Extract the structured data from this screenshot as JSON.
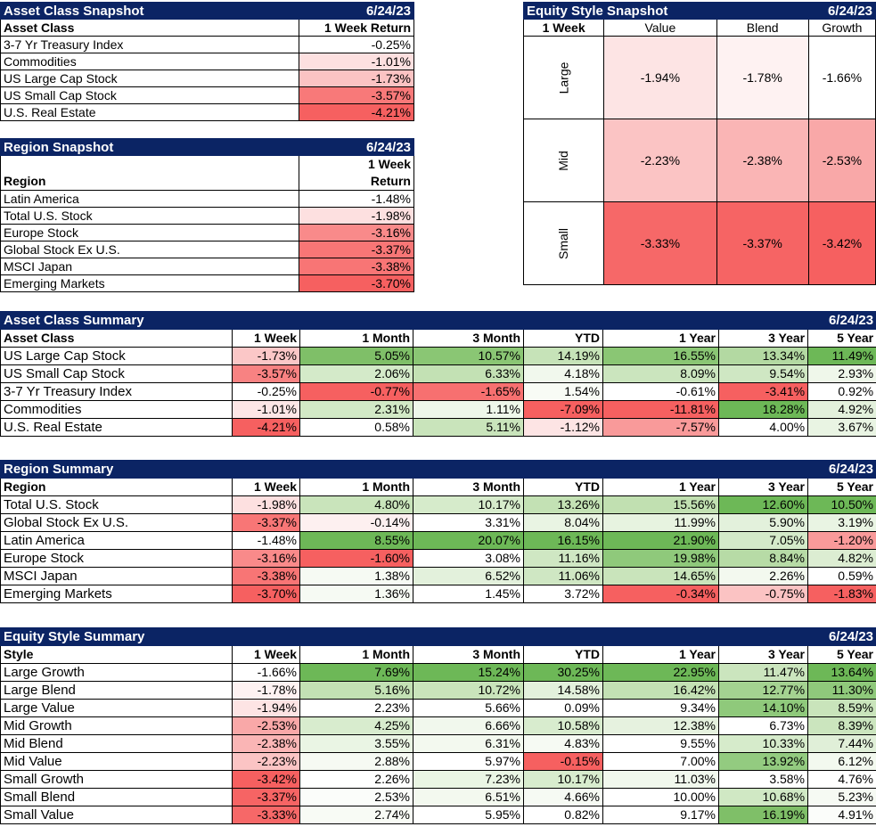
{
  "asset_snapshot": {
    "title": "Asset Class Snapshot",
    "date": "6/24/23",
    "col1": "Asset Class",
    "col2": "1 Week Return",
    "rows": [
      {
        "name": "3-7 Yr Treasury Index",
        "value": "-0.25%",
        "color": "#ffffff"
      },
      {
        "name": "Commodities",
        "value": "-1.01%",
        "color": "#fde0e0"
      },
      {
        "name": "US Large Cap Stock",
        "value": "-1.73%",
        "color": "#fbc3c3"
      },
      {
        "name": "US Small Cap Stock",
        "value": "-3.57%",
        "color": "#f87979"
      },
      {
        "name": "U.S. Real Estate",
        "value": "-4.21%",
        "color": "#f66060"
      }
    ]
  },
  "region_snapshot": {
    "title": "Region Snapshot",
    "date": "6/24/23",
    "col1": "Region",
    "col2_line1": "1 Week",
    "col2_line2": "Return",
    "rows": [
      {
        "name": "Latin America",
        "value": "-1.48%",
        "color": "#ffffff"
      },
      {
        "name": "Total U.S. Stock",
        "value": "-1.98%",
        "color": "#fde0e0"
      },
      {
        "name": "Europe Stock",
        "value": "-3.16%",
        "color": "#f98a8a"
      },
      {
        "name": "Global Stock Ex U.S.",
        "value": "-3.37%",
        "color": "#f87676"
      },
      {
        "name": "MSCI Japan",
        "value": "-3.38%",
        "color": "#f87575"
      },
      {
        "name": "Emerging Markets",
        "value": "-3.70%",
        "color": "#f66060"
      }
    ]
  },
  "equity_snapshot": {
    "title": "Equity Style Snapshot",
    "date": "6/24/23",
    "corner": "1 Week",
    "cols": [
      "Value",
      "Blend",
      "Growth"
    ],
    "rows": [
      {
        "label": "Large",
        "cells": [
          {
            "value": "-1.94%",
            "color": "#fde4e4"
          },
          {
            "value": "-1.78%",
            "color": "#fef2f2"
          },
          {
            "value": "-1.66%",
            "color": "#ffffff"
          }
        ]
      },
      {
        "label": "Mid",
        "cells": [
          {
            "value": "-2.23%",
            "color": "#fbc4c4"
          },
          {
            "value": "-2.38%",
            "color": "#fab5b5"
          },
          {
            "value": "-2.53%",
            "color": "#f9a8a8"
          }
        ]
      },
      {
        "label": "Small",
        "cells": [
          {
            "value": "-3.33%",
            "color": "#f66868"
          },
          {
            "value": "-3.37%",
            "color": "#f66464"
          },
          {
            "value": "-3.42%",
            "color": "#f66060"
          }
        ]
      }
    ]
  },
  "asset_summary": {
    "title": "Asset Class Summary",
    "date": "6/24/23",
    "headers": [
      "Asset Class",
      "1 Week",
      "1 Month",
      "3 Month",
      "YTD",
      "1 Year",
      "3 Year",
      "5 Year"
    ],
    "rows": [
      {
        "name": "US Large Cap Stock",
        "cells": [
          {
            "v": "-1.73%",
            "c": "#fbc7c7"
          },
          {
            "v": "5.05%",
            "c": "#7fbf68"
          },
          {
            "v": "10.57%",
            "c": "#8ac674"
          },
          {
            "v": "14.19%",
            "c": "#c6e3b8"
          },
          {
            "v": "16.55%",
            "c": "#8ac674"
          },
          {
            "v": "13.34%",
            "c": "#b3d9a2"
          },
          {
            "v": "11.49%",
            "c": "#6db857"
          }
        ]
      },
      {
        "name": "US Small Cap Stock",
        "cells": [
          {
            "v": "-3.57%",
            "c": "#f88282"
          },
          {
            "v": "2.06%",
            "c": "#d4eac9"
          },
          {
            "v": "6.33%",
            "c": "#c3e1b4"
          },
          {
            "v": "4.18%",
            "c": "#f1f8ed"
          },
          {
            "v": "8.09%",
            "c": "#cbe5be"
          },
          {
            "v": "9.54%",
            "c": "#cfe7c3"
          },
          {
            "v": "2.93%",
            "c": "#eff7ea"
          }
        ]
      },
      {
        "name": "3-7 Yr Treasury Index",
        "cells": [
          {
            "v": "-0.25%",
            "c": "#ffffff"
          },
          {
            "v": "-0.77%",
            "c": "#f66060"
          },
          {
            "v": "-1.65%",
            "c": "#f77070"
          },
          {
            "v": "1.54%",
            "c": "#f8fbf5"
          },
          {
            "v": "-0.61%",
            "c": "#ffffff"
          },
          {
            "v": "-3.41%",
            "c": "#f66060"
          },
          {
            "v": "0.92%",
            "c": "#ffffff"
          }
        ]
      },
      {
        "name": "Commodities",
        "cells": [
          {
            "v": "-1.01%",
            "c": "#fde6e6"
          },
          {
            "v": "2.31%",
            "c": "#d2e9c6"
          },
          {
            "v": "1.11%",
            "c": "#eef7ea"
          },
          {
            "v": "-7.09%",
            "c": "#f66060"
          },
          {
            "v": "-11.81%",
            "c": "#f66060"
          },
          {
            "v": "18.28%",
            "c": "#6db857"
          },
          {
            "v": "4.92%",
            "c": "#e3f1dc"
          }
        ]
      },
      {
        "name": "U.S. Real Estate",
        "cells": [
          {
            "v": "-4.21%",
            "c": "#f66060"
          },
          {
            "v": "0.58%",
            "c": "#ffffff"
          },
          {
            "v": "5.11%",
            "c": "#c9e4bb"
          },
          {
            "v": "-1.12%",
            "c": "#fde4e4"
          },
          {
            "v": "-7.57%",
            "c": "#f99a9a"
          },
          {
            "v": "4.00%",
            "c": "#ffffff"
          },
          {
            "v": "3.67%",
            "c": "#e9f4e3"
          }
        ]
      }
    ]
  },
  "region_summary": {
    "title": "Region Summary",
    "date": "6/24/23",
    "headers": [
      "Region",
      "1 Week",
      "1 Month",
      "3 Month",
      "YTD",
      "1 Year",
      "3 Year",
      "5 Year"
    ],
    "rows": [
      {
        "name": "Total U.S. Stock",
        "cells": [
          {
            "v": "-1.98%",
            "c": "#fde0e0"
          },
          {
            "v": "4.80%",
            "c": "#c9e4bb"
          },
          {
            "v": "10.17%",
            "c": "#d6ebcb"
          },
          {
            "v": "13.26%",
            "c": "#c3e1b4"
          },
          {
            "v": "15.56%",
            "c": "#c1e0b1"
          },
          {
            "v": "12.60%",
            "c": "#6db857"
          },
          {
            "v": "10.50%",
            "c": "#6db857"
          }
        ]
      },
      {
        "name": "Global Stock Ex U.S.",
        "cells": [
          {
            "v": "-3.37%",
            "c": "#f87676"
          },
          {
            "v": "-0.14%",
            "c": "#fdf0f0"
          },
          {
            "v": "3.31%",
            "c": "#ffffff"
          },
          {
            "v": "8.04%",
            "c": "#e9f4e3"
          },
          {
            "v": "11.99%",
            "c": "#e7f3e0"
          },
          {
            "v": "5.90%",
            "c": "#e3f1dc"
          },
          {
            "v": "3.19%",
            "c": "#e9f4e3"
          }
        ]
      },
      {
        "name": "Latin America",
        "cells": [
          {
            "v": "-1.48%",
            "c": "#ffffff"
          },
          {
            "v": "8.55%",
            "c": "#6db857"
          },
          {
            "v": "20.07%",
            "c": "#6db857"
          },
          {
            "v": "16.15%",
            "c": "#6db857"
          },
          {
            "v": "21.90%",
            "c": "#6db857"
          },
          {
            "v": "7.05%",
            "c": "#d4eac9"
          },
          {
            "v": "-1.20%",
            "c": "#f99a9a"
          }
        ]
      },
      {
        "name": "Europe Stock",
        "cells": [
          {
            "v": "-3.16%",
            "c": "#f98a8a"
          },
          {
            "v": "-1.60%",
            "c": "#f66060"
          },
          {
            "v": "3.08%",
            "c": "#ffffff"
          },
          {
            "v": "11.16%",
            "c": "#cfe7c3"
          },
          {
            "v": "19.98%",
            "c": "#8fc97b"
          },
          {
            "v": "8.84%",
            "c": "#b7dba6"
          },
          {
            "v": "4.82%",
            "c": "#dcedd2"
          }
        ]
      },
      {
        "name": "MSCI Japan",
        "cells": [
          {
            "v": "-3.38%",
            "c": "#f87575"
          },
          {
            "v": "1.38%",
            "c": "#f6faf3"
          },
          {
            "v": "6.52%",
            "c": "#e3f1dc"
          },
          {
            "v": "11.06%",
            "c": "#cfe7c3"
          },
          {
            "v": "14.65%",
            "c": "#c9e4bb"
          },
          {
            "v": "2.26%",
            "c": "#f3f9ef"
          },
          {
            "v": "0.59%",
            "c": "#ffffff"
          }
        ]
      },
      {
        "name": "Emerging Markets",
        "cells": [
          {
            "v": "-3.70%",
            "c": "#f66060"
          },
          {
            "v": "1.36%",
            "c": "#f6faf3"
          },
          {
            "v": "1.45%",
            "c": "#ffffff"
          },
          {
            "v": "3.72%",
            "c": "#ffffff"
          },
          {
            "v": "-0.34%",
            "c": "#f66060"
          },
          {
            "v": "-0.75%",
            "c": "#fbc3c3"
          },
          {
            "v": "-1.83%",
            "c": "#f66060"
          }
        ]
      }
    ]
  },
  "style_summary": {
    "title": "Equity Style Summary",
    "date": "6/24/23",
    "headers": [
      "Style",
      "1 Week",
      "1 Month",
      "3 Month",
      "YTD",
      "1 Year",
      "3 Year",
      "5 Year"
    ],
    "rows": [
      {
        "name": "Large Growth",
        "cells": [
          {
            "v": "-1.66%",
            "c": "#ffffff"
          },
          {
            "v": "7.69%",
            "c": "#6db857"
          },
          {
            "v": "15.24%",
            "c": "#6db857"
          },
          {
            "v": "30.25%",
            "c": "#6db857"
          },
          {
            "v": "22.95%",
            "c": "#6db857"
          },
          {
            "v": "11.47%",
            "c": "#cbe5be"
          },
          {
            "v": "13.64%",
            "c": "#6db857"
          }
        ]
      },
      {
        "name": "Large Blend",
        "cells": [
          {
            "v": "-1.78%",
            "c": "#fef2f2"
          },
          {
            "v": "5.16%",
            "c": "#c3e1b4"
          },
          {
            "v": "10.72%",
            "c": "#c9e4bb"
          },
          {
            "v": "14.58%",
            "c": "#e3f1dc"
          },
          {
            "v": "16.42%",
            "c": "#c3e1b4"
          },
          {
            "v": "12.77%",
            "c": "#a4d291"
          },
          {
            "v": "11.30%",
            "c": "#8fc97b"
          }
        ]
      },
      {
        "name": "Large Value",
        "cells": [
          {
            "v": "-1.94%",
            "c": "#fde4e4"
          },
          {
            "v": "2.23%",
            "c": "#ffffff"
          },
          {
            "v": "5.66%",
            "c": "#ffffff"
          },
          {
            "v": "0.09%",
            "c": "#ffffff"
          },
          {
            "v": "9.34%",
            "c": "#ffffff"
          },
          {
            "v": "14.10%",
            "c": "#8fc97b"
          },
          {
            "v": "8.59%",
            "c": "#c9e4bb"
          }
        ]
      },
      {
        "name": "Mid Growth",
        "cells": [
          {
            "v": "-2.53%",
            "c": "#f9a8a8"
          },
          {
            "v": "4.25%",
            "c": "#d8ecce"
          },
          {
            "v": "6.66%",
            "c": "#f1f8ed"
          },
          {
            "v": "10.58%",
            "c": "#d8ecce"
          },
          {
            "v": "12.38%",
            "c": "#e6f2df"
          },
          {
            "v": "6.73%",
            "c": "#ffffff"
          },
          {
            "v": "8.39%",
            "c": "#cbe5be"
          }
        ]
      },
      {
        "name": "Mid Blend",
        "cells": [
          {
            "v": "-2.38%",
            "c": "#fab5b5"
          },
          {
            "v": "3.55%",
            "c": "#eaf5e4"
          },
          {
            "v": "6.31%",
            "c": "#f3f9ef"
          },
          {
            "v": "4.83%",
            "c": "#f6faf3"
          },
          {
            "v": "9.55%",
            "c": "#ffffff"
          },
          {
            "v": "10.33%",
            "c": "#d6ebcb"
          },
          {
            "v": "7.44%",
            "c": "#e0efd8"
          }
        ]
      },
      {
        "name": "Mid Value",
        "cells": [
          {
            "v": "-2.23%",
            "c": "#fbc4c4"
          },
          {
            "v": "2.88%",
            "c": "#f6faf3"
          },
          {
            "v": "5.97%",
            "c": "#ffffff"
          },
          {
            "v": "-0.15%",
            "c": "#f66060"
          },
          {
            "v": "7.00%",
            "c": "#ffffff"
          },
          {
            "v": "13.92%",
            "c": "#93cb80"
          },
          {
            "v": "6.12%",
            "c": "#f3f9ef"
          }
        ]
      },
      {
        "name": "Small Growth",
        "cells": [
          {
            "v": "-3.42%",
            "c": "#f66060"
          },
          {
            "v": "2.26%",
            "c": "#ffffff"
          },
          {
            "v": "7.23%",
            "c": "#eaf5e4"
          },
          {
            "v": "10.17%",
            "c": "#d8ecce"
          },
          {
            "v": "11.03%",
            "c": "#f1f8ed"
          },
          {
            "v": "3.58%",
            "c": "#ffffff"
          },
          {
            "v": "4.76%",
            "c": "#ffffff"
          }
        ]
      },
      {
        "name": "Small Blend",
        "cells": [
          {
            "v": "-3.37%",
            "c": "#f66464"
          },
          {
            "v": "2.53%",
            "c": "#fbfdfa"
          },
          {
            "v": "6.51%",
            "c": "#f3f9ef"
          },
          {
            "v": "4.66%",
            "c": "#f6faf3"
          },
          {
            "v": "10.00%",
            "c": "#ffffff"
          },
          {
            "v": "10.68%",
            "c": "#d0e8c4"
          },
          {
            "v": "5.23%",
            "c": "#f6faf3"
          }
        ]
      },
      {
        "name": "Small Value",
        "cells": [
          {
            "v": "-3.33%",
            "c": "#f66868"
          },
          {
            "v": "2.74%",
            "c": "#f8fbf5"
          },
          {
            "v": "5.95%",
            "c": "#ffffff"
          },
          {
            "v": "0.82%",
            "c": "#ffffff"
          },
          {
            "v": "9.17%",
            "c": "#ffffff"
          },
          {
            "v": "16.19%",
            "c": "#7fbf68"
          },
          {
            "v": "4.91%",
            "c": "#fbfdfa"
          }
        ]
      }
    ]
  }
}
